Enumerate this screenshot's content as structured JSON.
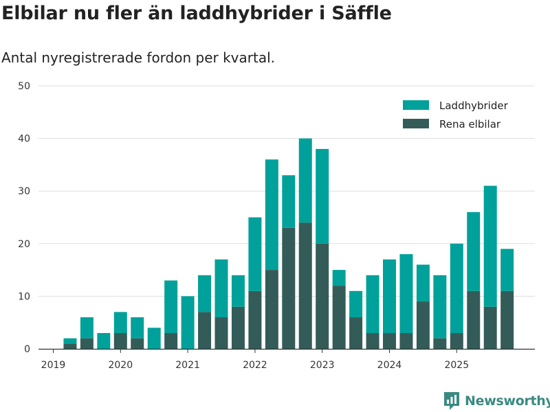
{
  "title": "Elbilar nu fler än laddhybrider i Säffle",
  "subtitle": "Antal nyregistrerade fordon per kvartal.",
  "brand": {
    "name": "Newsworthy",
    "icon": "newsworthy-logo-icon"
  },
  "colors": {
    "laddhybrider": "#00a19a",
    "elbilar": "#335c59",
    "grid": "#dddddd",
    "axis": "#333333",
    "brand": "#3a8a82"
  },
  "chart_data": {
    "type": "bar",
    "stacked": true,
    "categories": [
      "2019 Q1",
      "2019 Q2",
      "2019 Q3",
      "2019 Q4",
      "2020 Q1",
      "2020 Q2",
      "2020 Q3",
      "2020 Q4",
      "2021 Q1",
      "2021 Q2",
      "2021 Q3",
      "2021 Q4",
      "2022 Q1",
      "2022 Q2",
      "2022 Q3",
      "2022 Q4",
      "2023 Q1",
      "2023 Q2",
      "2023 Q3",
      "2023 Q4",
      "2024 Q1",
      "2024 Q2",
      "2024 Q3",
      "2024 Q4",
      "2025 Q1",
      "2025 Q2",
      "2025 Q3",
      "2025 Q4"
    ],
    "series": [
      {
        "name": "Rena elbilar",
        "values": [
          0,
          1,
          2,
          0,
          3,
          2,
          0,
          3,
          0,
          7,
          6,
          8,
          11,
          15,
          23,
          24,
          20,
          12,
          6,
          3,
          3,
          3,
          9,
          2,
          3,
          11,
          8,
          11
        ]
      },
      {
        "name": "Laddhybrider",
        "values": [
          0,
          1,
          4,
          3,
          4,
          4,
          4,
          10,
          10,
          7,
          11,
          6,
          14,
          21,
          10,
          16,
          18,
          3,
          5,
          11,
          14,
          15,
          7,
          12,
          17,
          15,
          23,
          8
        ]
      }
    ],
    "legend": [
      "Laddhybrider",
      "Rena elbilar"
    ],
    "legend_position": "top-right",
    "x_ticks": [
      "2019",
      "2020",
      "2021",
      "2022",
      "2023",
      "2024",
      "2025"
    ],
    "y_ticks": [
      0,
      10,
      20,
      30,
      40,
      50
    ],
    "ylim": [
      0,
      50
    ],
    "xlabel": "",
    "ylabel": ""
  }
}
